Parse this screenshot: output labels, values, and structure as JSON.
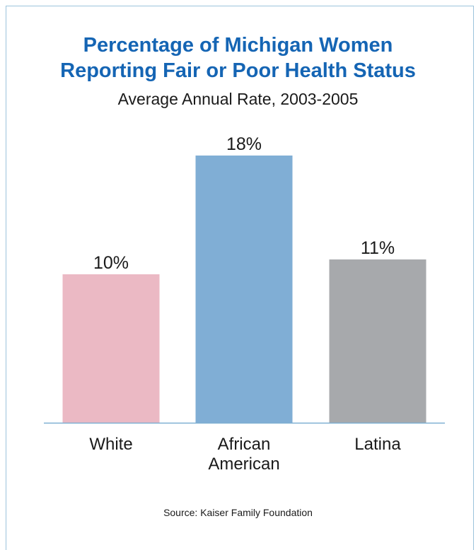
{
  "title_lines": [
    "Percentage of Michigan Women",
    "Reporting Fair or Poor Health Status"
  ],
  "subtitle": "Average Annual Rate, 2003-2005",
  "source": "Source: Kaiser Family Foundation",
  "colors": {
    "title": "#1565b4",
    "axis": "#7fb0d2",
    "frame": "#9cc3dc"
  },
  "chart_data": {
    "type": "bar",
    "title": "Percentage of Michigan Women Reporting Fair or Poor Health Status",
    "subtitle": "Average Annual Rate, 2003-2005",
    "categories": [
      "White",
      "African American",
      "Latina"
    ],
    "category_label_lines": [
      [
        "White"
      ],
      [
        "African",
        "American"
      ],
      [
        "Latina"
      ]
    ],
    "values": [
      10,
      18,
      11
    ],
    "value_labels": [
      "10%",
      "18%",
      "11%"
    ],
    "bar_colors": [
      "#ebb9c4",
      "#80aed5",
      "#a7a9ac"
    ],
    "unit": "%",
    "ylim": [
      0,
      18
    ],
    "grid": false,
    "legend": "none"
  }
}
